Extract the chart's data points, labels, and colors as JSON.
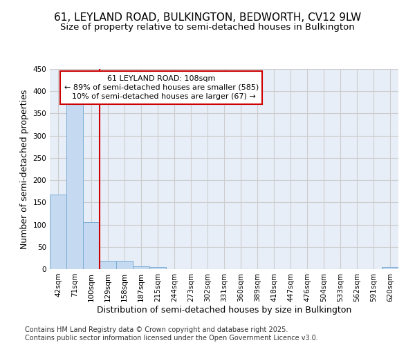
{
  "title": "61, LEYLAND ROAD, BULKINGTON, BEDWORTH, CV12 9LW",
  "subtitle": "Size of property relative to semi-detached houses in Bulkington",
  "xlabel": "Distribution of semi-detached houses by size in Bulkington",
  "ylabel": "Number of semi-detached properties",
  "categories": [
    "42sqm",
    "71sqm",
    "100sqm",
    "129sqm",
    "158sqm",
    "187sqm",
    "215sqm",
    "244sqm",
    "273sqm",
    "302sqm",
    "331sqm",
    "360sqm",
    "389sqm",
    "418sqm",
    "447sqm",
    "476sqm",
    "504sqm",
    "533sqm",
    "562sqm",
    "591sqm",
    "620sqm"
  ],
  "values": [
    168,
    371,
    106,
    19,
    19,
    6,
    4,
    0,
    0,
    0,
    0,
    0,
    0,
    0,
    0,
    0,
    0,
    0,
    0,
    0,
    4
  ],
  "bar_color": "#c5d9f0",
  "bar_edge_color": "#7aadd4",
  "annotation_line1": "61 LEYLAND ROAD: 108sqm",
  "annotation_line2": "← 89% of semi-detached houses are smaller (585)",
  "annotation_line3": "  10% of semi-detached houses are larger (67) →",
  "annotation_box_color": "#ffffff",
  "annotation_box_edge_color": "#cc0000",
  "vline_x": 2.5,
  "vline_color": "#cc0000",
  "ylim": [
    0,
    450
  ],
  "yticks": [
    0,
    50,
    100,
    150,
    200,
    250,
    300,
    350,
    400,
    450
  ],
  "grid_color": "#cccccc",
  "background_color": "#e8eef8",
  "footer_text": "Contains HM Land Registry data © Crown copyright and database right 2025.\nContains public sector information licensed under the Open Government Licence v3.0.",
  "title_fontsize": 11,
  "subtitle_fontsize": 9.5,
  "axis_label_fontsize": 9,
  "tick_fontsize": 7.5,
  "annotation_fontsize": 8,
  "footer_fontsize": 7
}
